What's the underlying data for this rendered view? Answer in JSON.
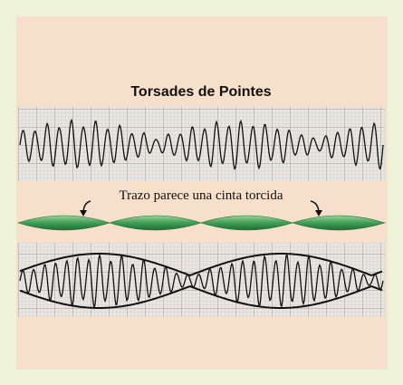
{
  "title": "Torsades de Pointes",
  "caption": "Trazo parece una cinta torcida"
}
